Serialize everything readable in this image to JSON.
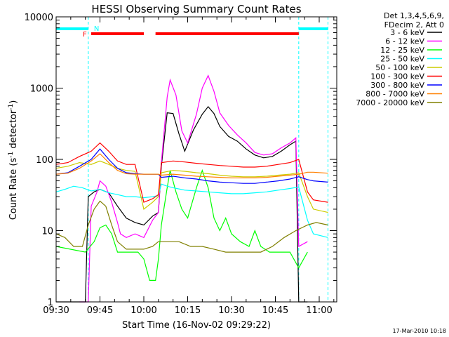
{
  "chart_data": {
    "type": "line",
    "title": "HESSI Observing Summary Count Rates",
    "xlabel": "Start Time (16-Nov-02 09:29:22)",
    "ylabel_main": "Count Rate (s",
    "ylabel_sup1": "-1",
    "ylabel_mid": " detector",
    "ylabel_sup2": "-1",
    "ylabel_end": ")",
    "y_scale": "log",
    "ylim": [
      1,
      10000
    ],
    "xlim": [
      "09:30",
      "11:06"
    ],
    "x_ticks": [
      "09:30",
      "09:45",
      "10:00",
      "10:15",
      "10:30",
      "10:45",
      "11:00"
    ],
    "y_ticks": [
      {
        "value": 1,
        "label": "1"
      },
      {
        "value": 10,
        "label": "10"
      },
      {
        "value": 100,
        "label": "100"
      },
      {
        "value": 1000,
        "label": "1000"
      },
      {
        "value": 10000,
        "label": "10000"
      }
    ],
    "legend_header": [
      "Det 1,3,4,5,6,9,",
      "FDecim 2, Att 0"
    ],
    "legend_position": "right",
    "timestamp": "17-Mar-2010 10:18",
    "markers": {
      "night_label": "N",
      "flare_label": "F",
      "night_color": "#00ffff",
      "flare_color": "#ff0000",
      "night_intervals": [
        [
          "09:30",
          "09:41"
        ],
        [
          "10:53",
          "11:03"
        ]
      ],
      "flare_intervals": [
        [
          "09:42",
          "10:00"
        ],
        [
          "10:04",
          "10:53"
        ]
      ],
      "vertical_lines": [
        "09:30",
        "09:41",
        "10:53",
        "11:03"
      ]
    },
    "series": [
      {
        "name": "3 - 6 keV",
        "color": "#000000",
        "points": [
          [
            "09:30",
            1
          ],
          [
            "09:40",
            1
          ],
          [
            "09:41",
            30
          ],
          [
            "09:43",
            35
          ],
          [
            "09:45",
            38
          ],
          [
            "09:48",
            34
          ],
          [
            "09:51",
            22
          ],
          [
            "09:54",
            15
          ],
          [
            "09:57",
            13
          ],
          [
            "10:00",
            12
          ],
          [
            "10:03",
            16
          ],
          [
            "10:05",
            18
          ],
          [
            "10:06",
            80
          ],
          [
            "10:08",
            450
          ],
          [
            "10:10",
            440
          ],
          [
            "10:12",
            230
          ],
          [
            "10:14",
            130
          ],
          [
            "10:17",
            260
          ],
          [
            "10:20",
            430
          ],
          [
            "10:22",
            550
          ],
          [
            "10:24",
            440
          ],
          [
            "10:26",
            290
          ],
          [
            "10:29",
            210
          ],
          [
            "10:32",
            180
          ],
          [
            "10:35",
            140
          ],
          [
            "10:38",
            115
          ],
          [
            "10:41",
            105
          ],
          [
            "10:44",
            110
          ],
          [
            "10:47",
            130
          ],
          [
            "10:50",
            160
          ],
          [
            "10:52",
            180
          ],
          [
            "10:53",
            1
          ],
          [
            "10:56",
            1
          ]
        ]
      },
      {
        "name": "6 - 12 keV",
        "color": "#ff00ff",
        "points": [
          [
            "09:38",
            1
          ],
          [
            "09:41",
            1
          ],
          [
            "09:42",
            22
          ],
          [
            "09:44",
            35
          ],
          [
            "09:45",
            50
          ],
          [
            "09:47",
            42
          ],
          [
            "09:49",
            25
          ],
          [
            "09:51",
            13
          ],
          [
            "09:52",
            9
          ],
          [
            "09:54",
            8
          ],
          [
            "09:57",
            9
          ],
          [
            "10:00",
            8
          ],
          [
            "10:03",
            14
          ],
          [
            "10:05",
            18
          ],
          [
            "10:06",
            90
          ],
          [
            "10:08",
            750
          ],
          [
            "10:09",
            1300
          ],
          [
            "10:11",
            800
          ],
          [
            "10:13",
            250
          ],
          [
            "10:15",
            170
          ],
          [
            "10:18",
            430
          ],
          [
            "10:20",
            1000
          ],
          [
            "10:22",
            1500
          ],
          [
            "10:24",
            900
          ],
          [
            "10:26",
            450
          ],
          [
            "10:29",
            300
          ],
          [
            "10:32",
            220
          ],
          [
            "10:35",
            170
          ],
          [
            "10:38",
            125
          ],
          [
            "10:41",
            115
          ],
          [
            "10:44",
            120
          ],
          [
            "10:47",
            145
          ],
          [
            "10:50",
            170
          ],
          [
            "10:52",
            200
          ],
          [
            "10:53",
            6
          ],
          [
            "10:56",
            7
          ]
        ]
      },
      {
        "name": "12 - 25 keV",
        "color": "#00ff00",
        "points": [
          [
            "09:30",
            6
          ],
          [
            "09:40",
            5
          ],
          [
            "09:43",
            7
          ],
          [
            "09:45",
            11
          ],
          [
            "09:47",
            12
          ],
          [
            "09:49",
            9
          ],
          [
            "09:51",
            5
          ],
          [
            "09:55",
            5
          ],
          [
            "09:58",
            5
          ],
          [
            "10:00",
            4
          ],
          [
            "10:02",
            2
          ],
          [
            "10:04",
            2
          ],
          [
            "10:05",
            4
          ],
          [
            "10:06",
            12
          ],
          [
            "10:08",
            40
          ],
          [
            "10:09",
            70
          ],
          [
            "10:11",
            35
          ],
          [
            "10:13",
            20
          ],
          [
            "10:15",
            15
          ],
          [
            "10:18",
            40
          ],
          [
            "10:20",
            70
          ],
          [
            "10:22",
            40
          ],
          [
            "10:24",
            15
          ],
          [
            "10:26",
            10
          ],
          [
            "10:28",
            15
          ],
          [
            "10:30",
            9
          ],
          [
            "10:33",
            7
          ],
          [
            "10:36",
            6
          ],
          [
            "10:38",
            10
          ],
          [
            "10:40",
            6
          ],
          [
            "10:43",
            5
          ],
          [
            "10:46",
            5
          ],
          [
            "10:50",
            5
          ],
          [
            "10:53",
            3
          ],
          [
            "10:56",
            5
          ]
        ]
      },
      {
        "name": "25 - 50 keV",
        "color": "#00ffff",
        "points": [
          [
            "09:30",
            35
          ],
          [
            "09:33",
            38
          ],
          [
            "09:36",
            42
          ],
          [
            "09:39",
            40
          ],
          [
            "09:42",
            36
          ],
          [
            "09:45",
            38
          ],
          [
            "09:48",
            34
          ],
          [
            "09:51",
            32
          ],
          [
            "09:54",
            30
          ],
          [
            "09:57",
            30
          ],
          [
            "10:00",
            29
          ],
          [
            "10:03",
            30
          ],
          [
            "10:05",
            31
          ],
          [
            "10:06",
            45
          ],
          [
            "10:08",
            42
          ],
          [
            "10:10",
            40
          ],
          [
            "10:14",
            37
          ],
          [
            "10:18",
            36
          ],
          [
            "10:22",
            35
          ],
          [
            "10:26",
            34
          ],
          [
            "10:30",
            33
          ],
          [
            "10:34",
            33
          ],
          [
            "10:38",
            34
          ],
          [
            "10:42",
            35
          ],
          [
            "10:46",
            37
          ],
          [
            "10:50",
            39
          ],
          [
            "10:53",
            41
          ],
          [
            "10:56",
            14
          ],
          [
            "10:58",
            9
          ],
          [
            "11:03",
            8
          ]
        ]
      },
      {
        "name": "50 - 100 keV",
        "color": "#cccc00",
        "points": [
          [
            "09:30",
            75
          ],
          [
            "09:34",
            80
          ],
          [
            "09:38",
            90
          ],
          [
            "09:42",
            85
          ],
          [
            "09:45",
            95
          ],
          [
            "09:48",
            85
          ],
          [
            "09:51",
            75
          ],
          [
            "09:54",
            70
          ],
          [
            "09:57",
            68
          ],
          [
            "10:00",
            20
          ],
          [
            "10:03",
            25
          ],
          [
            "10:05",
            30
          ],
          [
            "10:06",
            65
          ],
          [
            "10:10",
            70
          ],
          [
            "10:14",
            68
          ],
          [
            "10:18",
            65
          ],
          [
            "10:22",
            63
          ],
          [
            "10:26",
            60
          ],
          [
            "10:30",
            58
          ],
          [
            "10:34",
            57
          ],
          [
            "10:38",
            57
          ],
          [
            "10:42",
            58
          ],
          [
            "10:46",
            60
          ],
          [
            "10:50",
            62
          ],
          [
            "10:53",
            65
          ],
          [
            "10:56",
            30
          ],
          [
            "10:58",
            20
          ],
          [
            "11:03",
            18
          ]
        ]
      },
      {
        "name": "100 - 300 keV",
        "color": "#ff0000",
        "points": [
          [
            "09:30",
            85
          ],
          [
            "09:34",
            90
          ],
          [
            "09:38",
            110
          ],
          [
            "09:42",
            130
          ],
          [
            "09:45",
            170
          ],
          [
            "09:48",
            130
          ],
          [
            "09:51",
            95
          ],
          [
            "09:54",
            85
          ],
          [
            "09:57",
            85
          ],
          [
            "10:00",
            25
          ],
          [
            "10:03",
            28
          ],
          [
            "10:05",
            32
          ],
          [
            "10:06",
            90
          ],
          [
            "10:10",
            95
          ],
          [
            "10:14",
            92
          ],
          [
            "10:18",
            88
          ],
          [
            "10:22",
            85
          ],
          [
            "10:26",
            82
          ],
          [
            "10:30",
            80
          ],
          [
            "10:34",
            78
          ],
          [
            "10:38",
            78
          ],
          [
            "10:42",
            80
          ],
          [
            "10:46",
            85
          ],
          [
            "10:50",
            90
          ],
          [
            "10:53",
            100
          ],
          [
            "10:56",
            35
          ],
          [
            "10:58",
            27
          ],
          [
            "11:03",
            25
          ]
        ]
      },
      {
        "name": "300 - 800 keV",
        "color": "#0000ff",
        "points": [
          [
            "09:30",
            62
          ],
          [
            "09:34",
            65
          ],
          [
            "09:38",
            80
          ],
          [
            "09:42",
            100
          ],
          [
            "09:45",
            140
          ],
          [
            "09:48",
            100
          ],
          [
            "09:51",
            75
          ],
          [
            "09:54",
            65
          ],
          [
            "09:57",
            63
          ],
          [
            "10:00",
            62
          ],
          [
            "10:03",
            62
          ],
          [
            "10:05",
            62
          ],
          [
            "10:06",
            56
          ],
          [
            "10:10",
            58
          ],
          [
            "10:14",
            55
          ],
          [
            "10:18",
            53
          ],
          [
            "10:22",
            50
          ],
          [
            "10:26",
            48
          ],
          [
            "10:30",
            47
          ],
          [
            "10:34",
            46
          ],
          [
            "10:38",
            46
          ],
          [
            "10:42",
            48
          ],
          [
            "10:46",
            50
          ],
          [
            "10:50",
            53
          ],
          [
            "10:53",
            57
          ],
          [
            "10:56",
            52
          ],
          [
            "10:58",
            50
          ],
          [
            "11:03",
            48
          ]
        ]
      },
      {
        "name": "800 - 7000 keV",
        "color": "#ff8000",
        "points": [
          [
            "09:30",
            62
          ],
          [
            "09:34",
            64
          ],
          [
            "09:38",
            75
          ],
          [
            "09:42",
            95
          ],
          [
            "09:45",
            120
          ],
          [
            "09:48",
            90
          ],
          [
            "09:51",
            70
          ],
          [
            "09:54",
            63
          ],
          [
            "09:57",
            62
          ],
          [
            "10:00",
            62
          ],
          [
            "10:03",
            62
          ],
          [
            "10:05",
            62
          ],
          [
            "10:06",
            60
          ],
          [
            "10:10",
            62
          ],
          [
            "10:14",
            60
          ],
          [
            "10:18",
            58
          ],
          [
            "10:22",
            57
          ],
          [
            "10:26",
            56
          ],
          [
            "10:30",
            55
          ],
          [
            "10:34",
            55
          ],
          [
            "10:38",
            55
          ],
          [
            "10:42",
            56
          ],
          [
            "10:46",
            58
          ],
          [
            "10:50",
            60
          ],
          [
            "10:53",
            62
          ],
          [
            "10:56",
            66
          ],
          [
            "10:58",
            66
          ],
          [
            "11:03",
            64
          ]
        ]
      },
      {
        "name": "7000 - 20000 keV",
        "color": "#808000",
        "points": [
          [
            "09:30",
            9
          ],
          [
            "09:33",
            8
          ],
          [
            "09:36",
            6
          ],
          [
            "09:39",
            6
          ],
          [
            "09:41",
            12
          ],
          [
            "09:43",
            20
          ],
          [
            "09:45",
            26
          ],
          [
            "09:47",
            22
          ],
          [
            "09:49",
            12
          ],
          [
            "09:51",
            7
          ],
          [
            "09:54",
            5.5
          ],
          [
            "09:57",
            5.5
          ],
          [
            "10:00",
            5.5
          ],
          [
            "10:03",
            6
          ],
          [
            "10:05",
            7
          ],
          [
            "10:08",
            7
          ],
          [
            "10:12",
            7
          ],
          [
            "10:16",
            6
          ],
          [
            "10:20",
            6
          ],
          [
            "10:24",
            5.5
          ],
          [
            "10:28",
            5
          ],
          [
            "10:32",
            5
          ],
          [
            "10:36",
            5
          ],
          [
            "10:40",
            5
          ],
          [
            "10:44",
            6
          ],
          [
            "10:48",
            8
          ],
          [
            "10:52",
            10
          ],
          [
            "10:56",
            12
          ],
          [
            "10:59",
            13
          ],
          [
            "11:03",
            12
          ]
        ]
      }
    ]
  }
}
